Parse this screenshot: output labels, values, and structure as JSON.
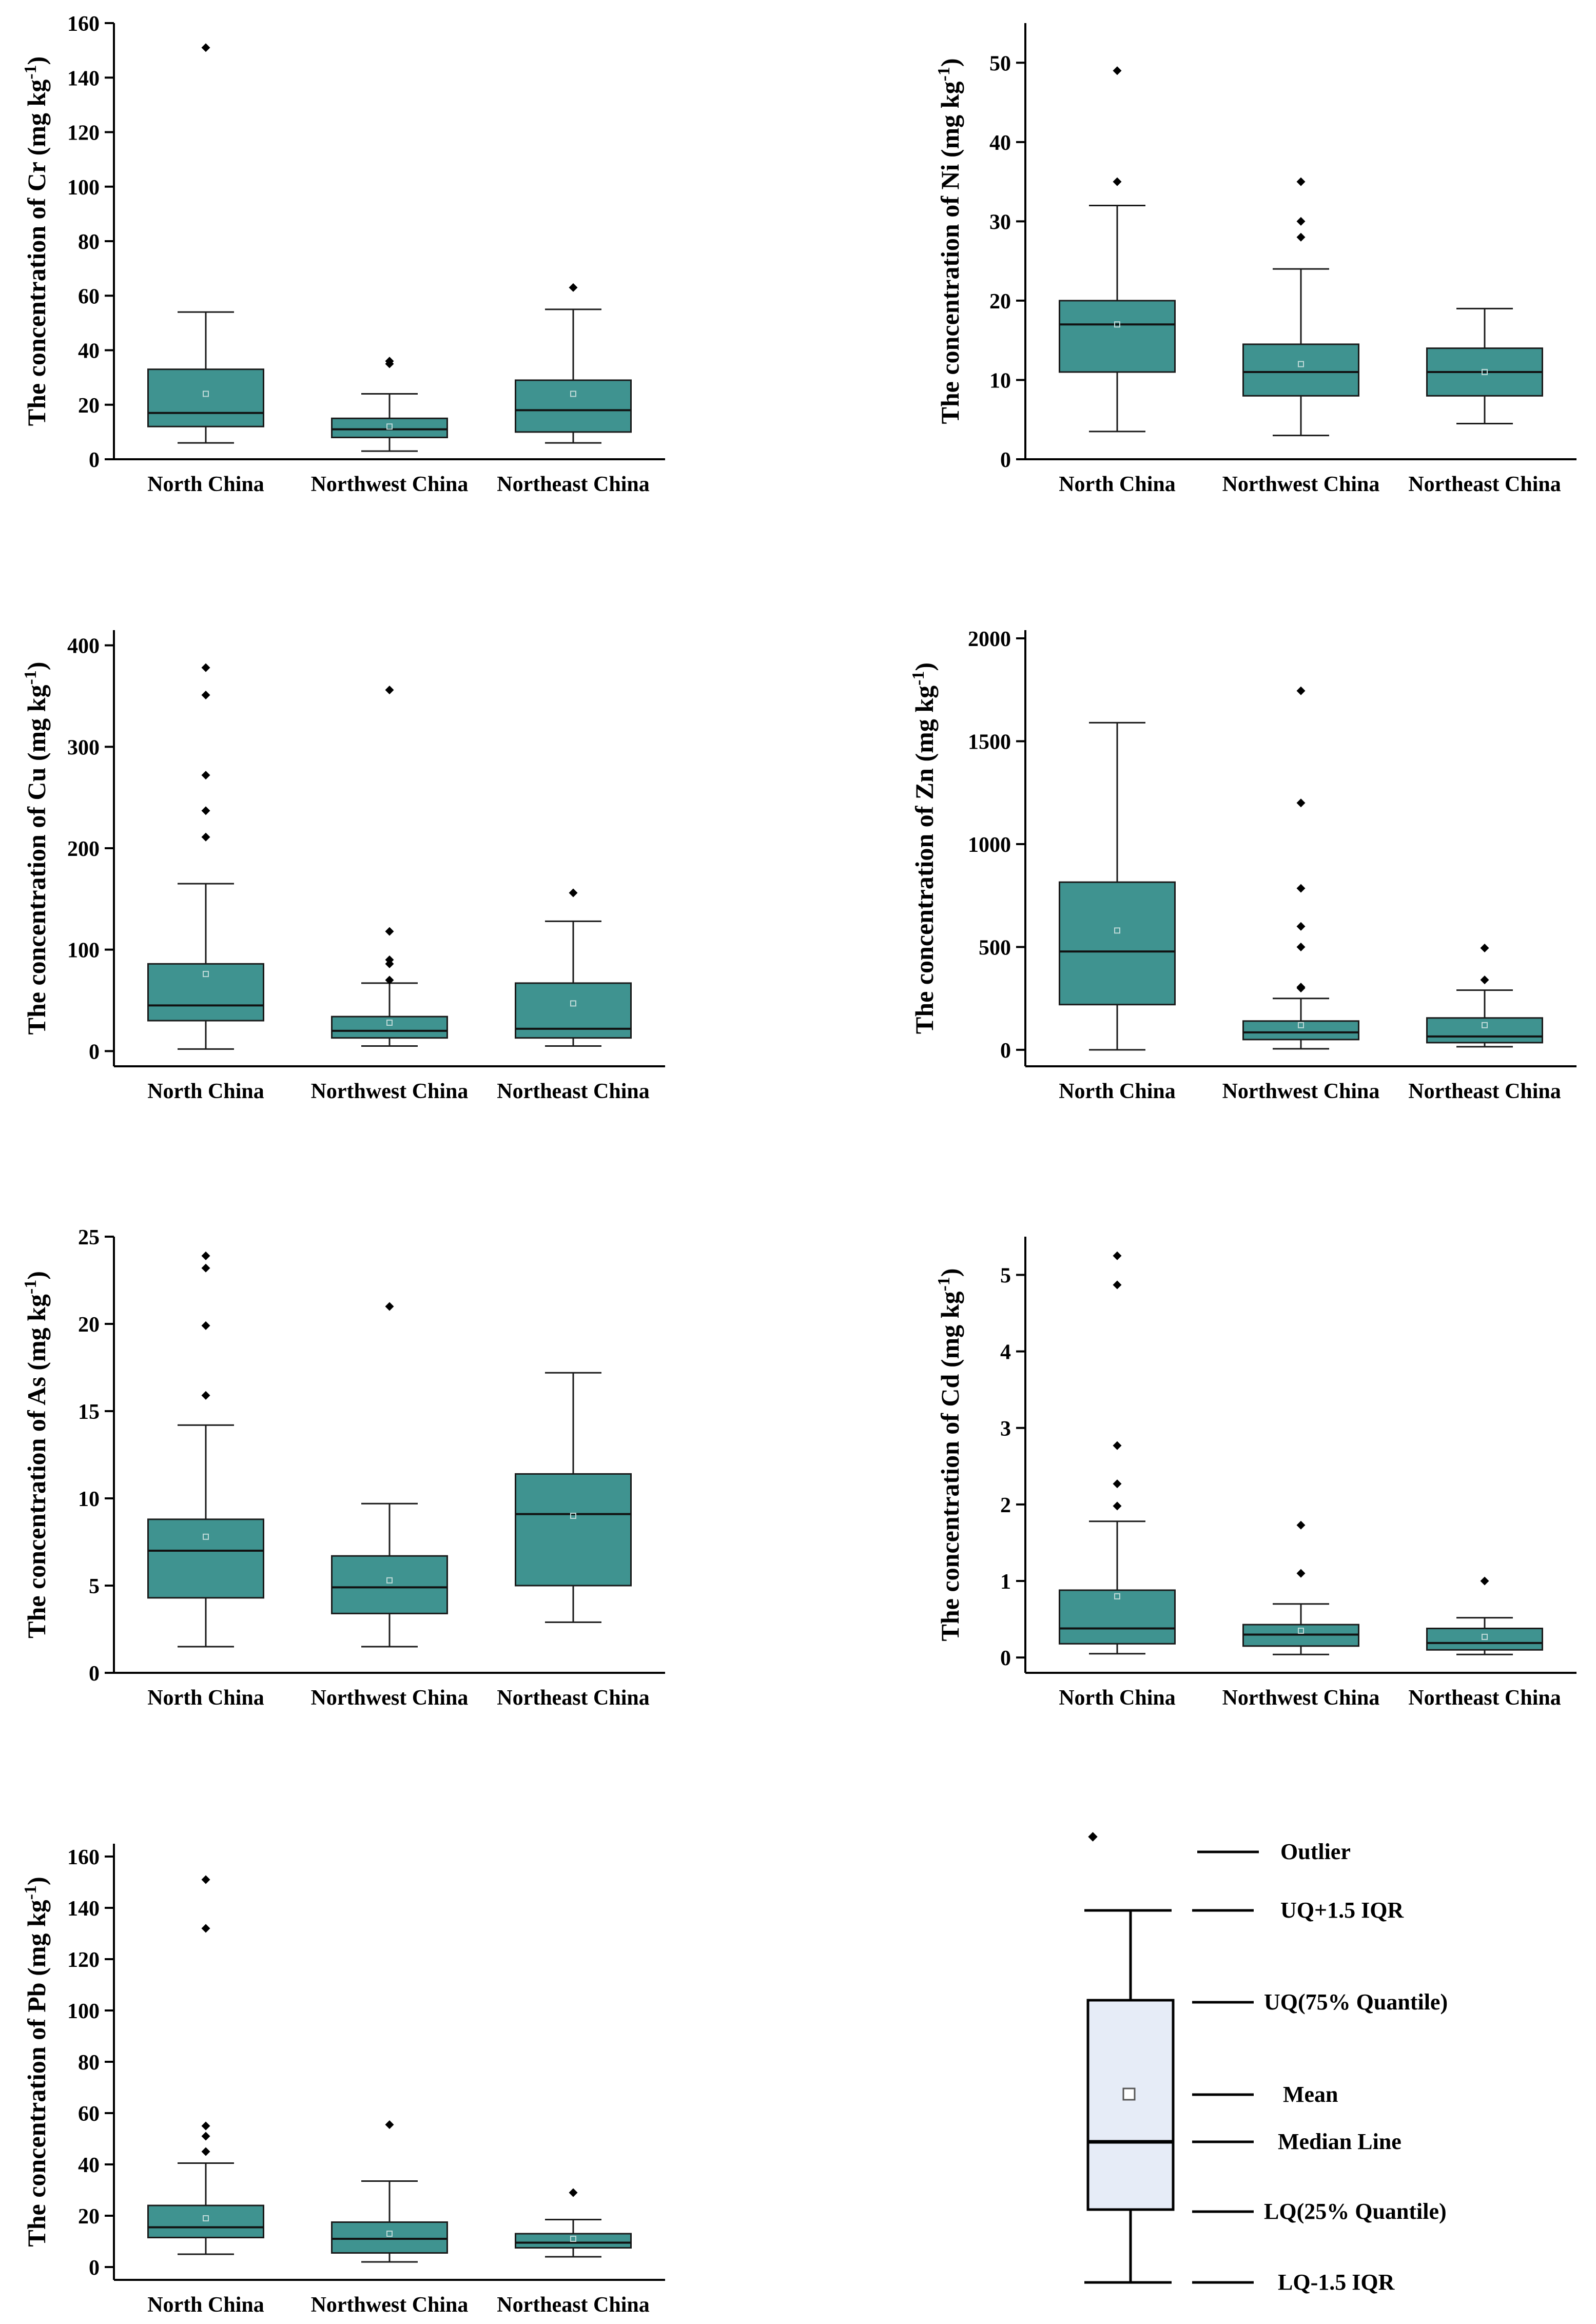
{
  "colors": {
    "box_fill": "#3f9390",
    "box_stroke": "#1a1a1a",
    "legend_box_fill": "#e6ecf7",
    "axis": "#000000"
  },
  "chart_data": [
    {
      "type": "boxplot",
      "id": "cr",
      "ylabel": "The concentration of Cr (mg kg-1)",
      "ylabel_main": "The concentration of Cr (mg kg",
      "ylabel_sup": "-1",
      "ylabel_end": ")",
      "ylim": [
        0,
        160
      ],
      "yticks": [
        "0",
        "20",
        "40",
        "60",
        "80",
        "100",
        "120",
        "140",
        "160"
      ],
      "ytick_values": [
        0,
        20,
        40,
        60,
        80,
        100,
        120,
        140,
        160
      ],
      "categories": [
        "North China",
        "Northwest China",
        "Northeast China"
      ],
      "series": [
        {
          "name": "North China",
          "whisker_low": 6,
          "q1": 12,
          "median": 17,
          "q3": 33,
          "whisker_high": 54,
          "mean": 24,
          "outliers": [
            151
          ]
        },
        {
          "name": "Northwest China",
          "whisker_low": 3,
          "q1": 8,
          "median": 11,
          "q3": 15,
          "whisker_high": 24,
          "mean": 12,
          "outliers": [
            35,
            36
          ]
        },
        {
          "name": "Northeast China",
          "whisker_low": 6,
          "q1": 10,
          "median": 18,
          "q3": 29,
          "whisker_high": 55,
          "mean": 24,
          "outliers": [
            63
          ]
        }
      ]
    },
    {
      "type": "boxplot",
      "id": "ni",
      "ylabel": "The concentration of Ni (mg kg-1)",
      "ylabel_main": "The concentration of Ni (mg kg",
      "ylabel_sup": "-1",
      "ylabel_end": ")",
      "ylim": [
        0,
        55
      ],
      "yticks": [
        "0",
        "10",
        "20",
        "30",
        "40",
        "50"
      ],
      "ytick_values": [
        0,
        10,
        20,
        30,
        40,
        50
      ],
      "categories": [
        "North China",
        "Northwest China",
        "Northeast China"
      ],
      "series": [
        {
          "name": "North China",
          "whisker_low": 3.5,
          "q1": 11,
          "median": 17,
          "q3": 20,
          "whisker_high": 32,
          "mean": 17,
          "outliers": [
            35,
            49
          ]
        },
        {
          "name": "Northwest China",
          "whisker_low": 3,
          "q1": 8,
          "median": 11,
          "q3": 14.5,
          "whisker_high": 24,
          "mean": 12,
          "outliers": [
            28,
            30,
            35
          ]
        },
        {
          "name": "Northeast China",
          "whisker_low": 4.5,
          "q1": 8,
          "median": 11,
          "q3": 14,
          "whisker_high": 19,
          "mean": 11,
          "outliers": []
        }
      ]
    },
    {
      "type": "boxplot",
      "id": "cu",
      "ylabel": "The concentration of Cu (mg kg-1)",
      "ylabel_main": "The concentration of Cu (mg kg",
      "ylabel_sup": "-1",
      "ylabel_end": ")",
      "ylim": [
        -15,
        415
      ],
      "yticks": [
        "0",
        "100",
        "200",
        "300",
        "400"
      ],
      "ytick_values": [
        0,
        100,
        200,
        300,
        400
      ],
      "categories": [
        "North China",
        "Northwest China",
        "Northeast China"
      ],
      "series": [
        {
          "name": "North China",
          "whisker_low": 2,
          "q1": 30,
          "median": 45,
          "q3": 86,
          "whisker_high": 165,
          "mean": 76,
          "outliers": [
            211,
            237,
            272,
            351,
            378
          ]
        },
        {
          "name": "Northwest China",
          "whisker_low": 5,
          "q1": 13,
          "median": 20,
          "q3": 34,
          "whisker_high": 67,
          "mean": 28,
          "outliers": [
            70,
            86,
            90,
            118,
            356
          ]
        },
        {
          "name": "Northeast China",
          "whisker_low": 5,
          "q1": 13,
          "median": 22,
          "q3": 67,
          "whisker_high": 128,
          "mean": 47,
          "outliers": [
            156
          ]
        }
      ]
    },
    {
      "type": "boxplot",
      "id": "zn",
      "ylabel": "The concentration of Zn (mg kg-1)",
      "ylabel_main": "The concentration of Zn (mg kg",
      "ylabel_sup": "-1",
      "ylabel_end": ")",
      "ylim": [
        -80,
        2040
      ],
      "yticks": [
        "0",
        "500",
        "1000",
        "1500",
        "2000"
      ],
      "ytick_values": [
        0,
        500,
        1000,
        1500,
        2000
      ],
      "categories": [
        "North China",
        "Northwest China",
        "Northeast China"
      ],
      "series": [
        {
          "name": "North China",
          "whisker_low": 0,
          "q1": 220,
          "median": 478,
          "q3": 815,
          "whisker_high": 1590,
          "mean": 580,
          "outliers": []
        },
        {
          "name": "Northwest China",
          "whisker_low": 5,
          "q1": 50,
          "median": 85,
          "q3": 140,
          "whisker_high": 250,
          "mean": 120,
          "outliers": [
            300,
            305,
            500,
            600,
            785,
            1200,
            1745
          ]
        },
        {
          "name": "Northeast China",
          "whisker_low": 15,
          "q1": 35,
          "median": 65,
          "q3": 155,
          "whisker_high": 290,
          "mean": 120,
          "outliers": [
            340,
            495
          ]
        }
      ]
    },
    {
      "type": "boxplot",
      "id": "as",
      "ylabel": "The concentration of As (mg kg-1)",
      "ylabel_main": "The concentration of As (mg kg",
      "ylabel_sup": "-1",
      "ylabel_end": ")",
      "ylim": [
        0,
        25
      ],
      "yticks": [
        "0",
        "5",
        "10",
        "15",
        "20",
        "25"
      ],
      "ytick_values": [
        0,
        5,
        10,
        15,
        20,
        25
      ],
      "categories": [
        "North China",
        "Northwest China",
        "Northeast China"
      ],
      "series": [
        {
          "name": "North China",
          "whisker_low": 1.5,
          "q1": 4.3,
          "median": 7,
          "q3": 8.8,
          "whisker_high": 14.2,
          "mean": 7.8,
          "outliers": [
            15.9,
            19.9,
            23.2,
            23.9
          ]
        },
        {
          "name": "Northwest China",
          "whisker_low": 1.5,
          "q1": 3.4,
          "median": 4.9,
          "q3": 6.7,
          "whisker_high": 9.7,
          "mean": 5.3,
          "outliers": [
            21
          ]
        },
        {
          "name": "Northeast China",
          "whisker_low": 2.9,
          "q1": 5,
          "median": 9.1,
          "q3": 11.4,
          "whisker_high": 17.2,
          "mean": 9,
          "outliers": []
        }
      ]
    },
    {
      "type": "boxplot",
      "id": "cd",
      "ylabel": "The concentration of Cd (mg kg-1)",
      "ylabel_main": "The concentration of Cd (mg kg",
      "ylabel_sup": "-1",
      "ylabel_end": ")",
      "ylim": [
        -0.2,
        5.5
      ],
      "yticks": [
        "0",
        "1",
        "2",
        "3",
        "4",
        "5"
      ],
      "ytick_values": [
        0,
        1,
        2,
        3,
        4,
        5
      ],
      "categories": [
        "North China",
        "Northwest China",
        "Northeast China"
      ],
      "series": [
        {
          "name": "North China",
          "whisker_low": 0.05,
          "q1": 0.18,
          "median": 0.38,
          "q3": 0.88,
          "whisker_high": 1.78,
          "mean": 0.8,
          "outliers": [
            1.98,
            2.27,
            2.77,
            4.87,
            5.25
          ]
        },
        {
          "name": "Northwest China",
          "whisker_low": 0.04,
          "q1": 0.15,
          "median": 0.3,
          "q3": 0.43,
          "whisker_high": 0.7,
          "mean": 0.35,
          "outliers": [
            1.1,
            1.73
          ]
        },
        {
          "name": "Northeast China",
          "whisker_low": 0.04,
          "q1": 0.1,
          "median": 0.19,
          "q3": 0.38,
          "whisker_high": 0.52,
          "mean": 0.27,
          "outliers": [
            1
          ]
        }
      ]
    },
    {
      "type": "boxplot",
      "id": "pb",
      "ylabel": "The concentration of Pb (mg kg-1)",
      "ylabel_main": "The concentration of Pb (mg kg",
      "ylabel_sup": "-1",
      "ylabel_end": ")",
      "ylim": [
        -5,
        165
      ],
      "yticks": [
        "0",
        "20",
        "40",
        "60",
        "80",
        "100",
        "120",
        "140",
        "160"
      ],
      "ytick_values": [
        0,
        20,
        40,
        60,
        80,
        100,
        120,
        140,
        160
      ],
      "categories": [
        "North China",
        "Northwest China",
        "Northeast China"
      ],
      "series": [
        {
          "name": "North China",
          "whisker_low": 5,
          "q1": 11.5,
          "median": 15.5,
          "q3": 24,
          "whisker_high": 40.5,
          "mean": 19,
          "outliers": [
            45,
            51,
            55,
            132,
            151
          ]
        },
        {
          "name": "Northwest China",
          "whisker_low": 2,
          "q1": 5.5,
          "median": 11,
          "q3": 17.5,
          "whisker_high": 33.5,
          "mean": 13,
          "outliers": [
            55.5
          ]
        },
        {
          "name": "Northeast China",
          "whisker_low": 4,
          "q1": 7.5,
          "median": 9.5,
          "q3": 13,
          "whisker_high": 18.5,
          "mean": 11,
          "outliers": [
            29
          ]
        }
      ]
    }
  ],
  "legend": {
    "outlier": "Outlier",
    "upper_whisker": "UQ+1.5 IQR",
    "upper_quartile": "UQ(75% Quantile)",
    "mean": "Mean",
    "median": "Median Line",
    "lower_quartile": "LQ(25% Quantile)",
    "lower_whisker": "LQ-1.5 IQR"
  }
}
